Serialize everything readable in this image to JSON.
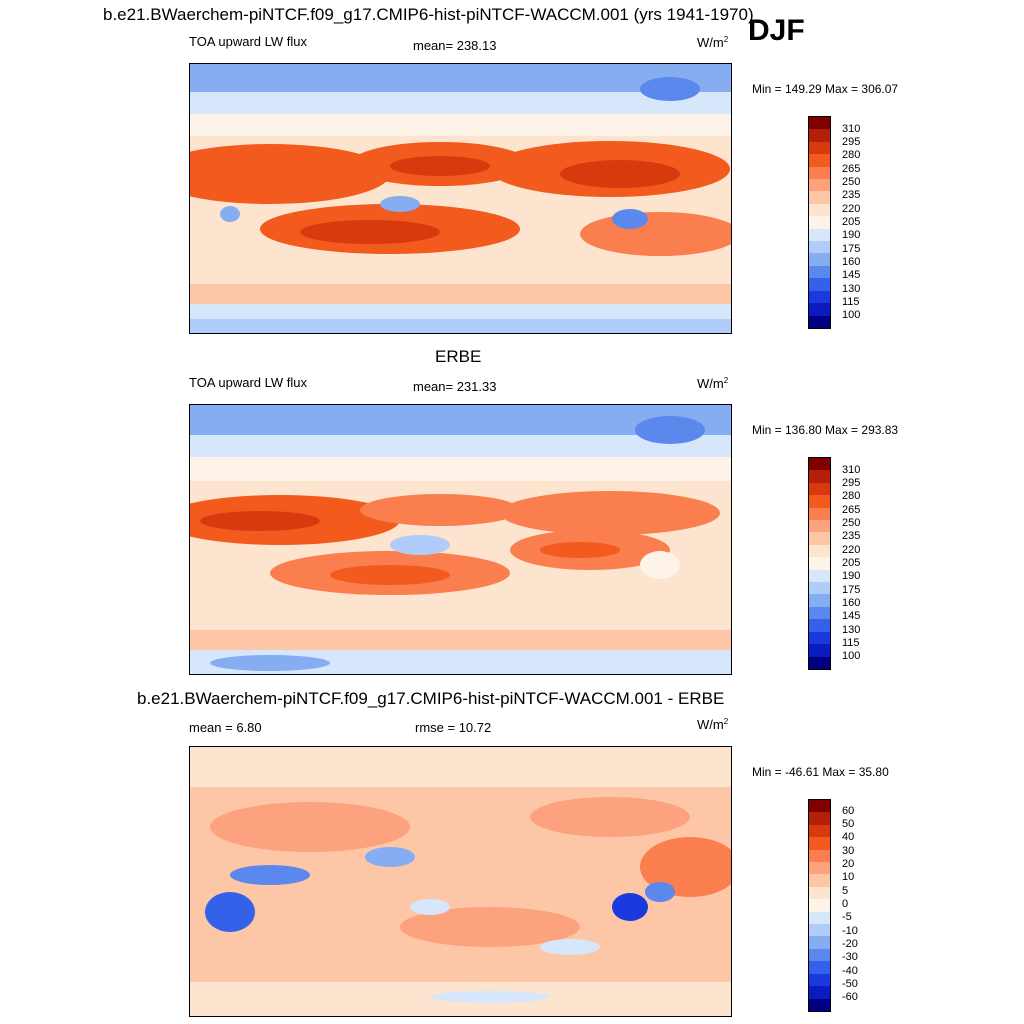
{
  "header": {
    "title": "b.e21.BWaerchem-piNTCF.f09_g17.CMIP6-hist-piNTCF-WACCM.001 (yrs 1941-1970)",
    "season": "DJF"
  },
  "panels": [
    {
      "title": "",
      "left_label": "TOA upward LW flux",
      "center_label": "mean= 238.13",
      "units_base": "W/m",
      "units_exp": "2",
      "stats": "Min = 149.29 Max = 306.07",
      "colorbar_labels": [
        "310",
        "295",
        "280",
        "265",
        "250",
        "235",
        "220",
        "205",
        "190",
        "175",
        "160",
        "145",
        "130",
        "115",
        "100"
      ]
    },
    {
      "title": "ERBE",
      "left_label": "TOA upward LW flux",
      "center_label": "mean= 231.33",
      "units_base": "W/m",
      "units_exp": "2",
      "stats": "Min = 136.80 Max = 293.83",
      "colorbar_labels": [
        "310",
        "295",
        "280",
        "265",
        "250",
        "235",
        "220",
        "205",
        "190",
        "175",
        "160",
        "145",
        "130",
        "115",
        "100"
      ]
    },
    {
      "title": "b.e21.BWaerchem-piNTCF.f09_g17.CMIP6-hist-piNTCF-WACCM.001 - ERBE",
      "left_label": "mean =   6.80",
      "center_label": "rmse =  10.72",
      "units_base": "W/m",
      "units_exp": "2",
      "stats": "Min = -46.61 Max =  35.80",
      "colorbar_labels": [
        "60",
        "50",
        "40",
        "30",
        "20",
        "10",
        "5",
        "0",
        "-5",
        "-10",
        "-20",
        "-30",
        "-40",
        "-50",
        "-60"
      ]
    }
  ],
  "colors": {
    "palette": [
      "#800000",
      "#b2200a",
      "#d83a0e",
      "#f25a1e",
      "#fb7e4f",
      "#fca27e",
      "#fdc6a7",
      "#fde4cf",
      "#fef3e8",
      "#d6e6fb",
      "#b0ccf8",
      "#86acf2",
      "#5a88ed",
      "#3560ea",
      "#1a3ae0",
      "#0a1bc0",
      "#000080"
    ],
    "land_outline": "#000000"
  }
}
